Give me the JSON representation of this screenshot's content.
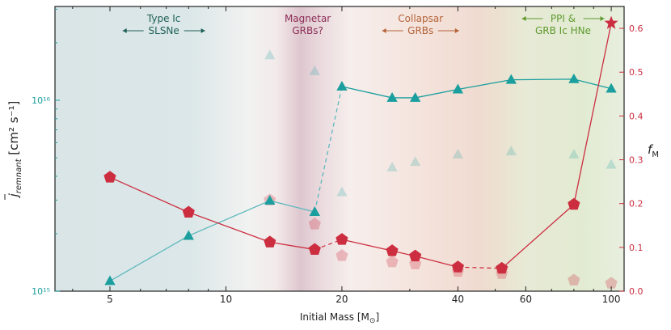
{
  "chart_data": {
    "type": "line",
    "xlabel": "Initial Mass [M",
    "xlabel_sub": "⊙",
    "xlabel_end": "]",
    "xscale": "log",
    "xlim": [
      3.6,
      108
    ],
    "xticks": [
      {
        "value": 5,
        "label": "5"
      },
      {
        "value": 10,
        "label": "10"
      },
      {
        "value": 20,
        "label": "20"
      },
      {
        "value": 40,
        "label": "40"
      },
      {
        "value": 60,
        "label": "60"
      },
      {
        "value": 100,
        "label": "100"
      }
    ],
    "y_left": {
      "label_main": "j",
      "label_sub": "remnant",
      "label_units": "[cm² s⁻¹]",
      "scale": "log",
      "ylim": [
        1000000000000000.0,
        3.1e+16
      ],
      "ticks": [
        {
          "value": 1000000000000000.0,
          "label": "10¹⁵"
        },
        {
          "value": 1e+16,
          "label": "10¹⁶"
        }
      ],
      "color": "#1a9e9e"
    },
    "y_right": {
      "label": "f",
      "label_sub": "M",
      "ylim": [
        0,
        0.65
      ],
      "ticks": [
        {
          "value": 0.0,
          "label": "0.0"
        },
        {
          "value": 0.1,
          "label": "0.1"
        },
        {
          "value": 0.2,
          "label": "0.2"
        },
        {
          "value": 0.3,
          "label": "0.3"
        },
        {
          "value": 0.4,
          "label": "0.4"
        },
        {
          "value": 0.5,
          "label": "0.5"
        },
        {
          "value": 0.6,
          "label": "0.6"
        }
      ],
      "color": "#cc2e40"
    },
    "regions": [
      {
        "label_lines": [
          "Type Ic",
          "SLSNe"
        ],
        "label_x": 6.9,
        "arrows": true,
        "color": "#1e5f56",
        "x_from": 3.6,
        "x_to": 8.0
      },
      {
        "label_lines": [
          "Magnetar",
          "GRBs?"
        ],
        "label_x": 16.3,
        "arrows": false,
        "color": "#8c2c55",
        "x_from": 13.5,
        "x_to": 19.5
      },
      {
        "label_lines": [
          "Collapsar",
          "GRBs"
        ],
        "label_x": 32.0,
        "arrows": true,
        "color": "#b56238",
        "x_from": 24.0,
        "x_to": 45.0
      },
      {
        "label_lines": [
          "PPI &",
          "GRB Ic HNe"
        ],
        "label_x": 75.0,
        "arrows": true,
        "color": "#5e9a2e",
        "x_from": 55.0,
        "x_to": 108.0
      }
    ],
    "series": [
      {
        "name": "j_remnant",
        "axis": "left",
        "marker": "triangle",
        "color": "#1a9e9e",
        "points": [
          [
            5,
            1130000000000000.0
          ],
          [
            8,
            1950000000000000.0
          ],
          [
            13,
            2980000000000000.0
          ],
          [
            17,
            2600000000000000.0
          ],
          [
            20,
            1.18e+16
          ],
          [
            27,
            1.03e+16
          ],
          [
            31,
            1.03e+16
          ],
          [
            40,
            1.14e+16
          ],
          [
            55,
            1.28e+16
          ],
          [
            80,
            1.29e+16
          ],
          [
            100,
            1.15e+16
          ]
        ]
      },
      {
        "name": "f_M",
        "axis": "right",
        "marker": "pentagon",
        "color": "#cc2e40",
        "last_marker": "star",
        "points": [
          [
            5,
            0.26
          ],
          [
            8,
            0.18
          ],
          [
            13,
            0.112
          ],
          [
            17,
            0.095
          ],
          [
            20,
            0.118
          ],
          [
            27,
            0.092
          ],
          [
            31,
            0.08
          ],
          [
            40,
            0.055
          ],
          [
            52,
            0.052
          ],
          [
            80,
            0.198
          ],
          [
            100,
            0.612
          ]
        ]
      },
      {
        "name": "j_faint",
        "axis": "left",
        "marker": "triangle",
        "color": "#1a9e9e",
        "faint": true,
        "points": [
          [
            13,
            1.72e+16
          ],
          [
            17,
            1.42e+16
          ],
          [
            20,
            3300000000000000.0
          ],
          [
            27,
            4450000000000000.0
          ],
          [
            31,
            4750000000000000.0
          ],
          [
            40,
            5200000000000000.0
          ],
          [
            55,
            5400000000000000.0
          ],
          [
            80,
            5200000000000000.0
          ],
          [
            100,
            4600000000000000.0
          ]
        ]
      },
      {
        "name": "f_faint",
        "axis": "right",
        "marker": "pentagon",
        "color": "#cc2e40",
        "faint": true,
        "points": [
          [
            13,
            0.208
          ],
          [
            17,
            0.153
          ],
          [
            20,
            0.081
          ],
          [
            27,
            0.067
          ],
          [
            31,
            0.062
          ],
          [
            40,
            0.045
          ],
          [
            52,
            0.04
          ],
          [
            80,
            0.025
          ],
          [
            100,
            0.018
          ]
        ]
      }
    ]
  }
}
